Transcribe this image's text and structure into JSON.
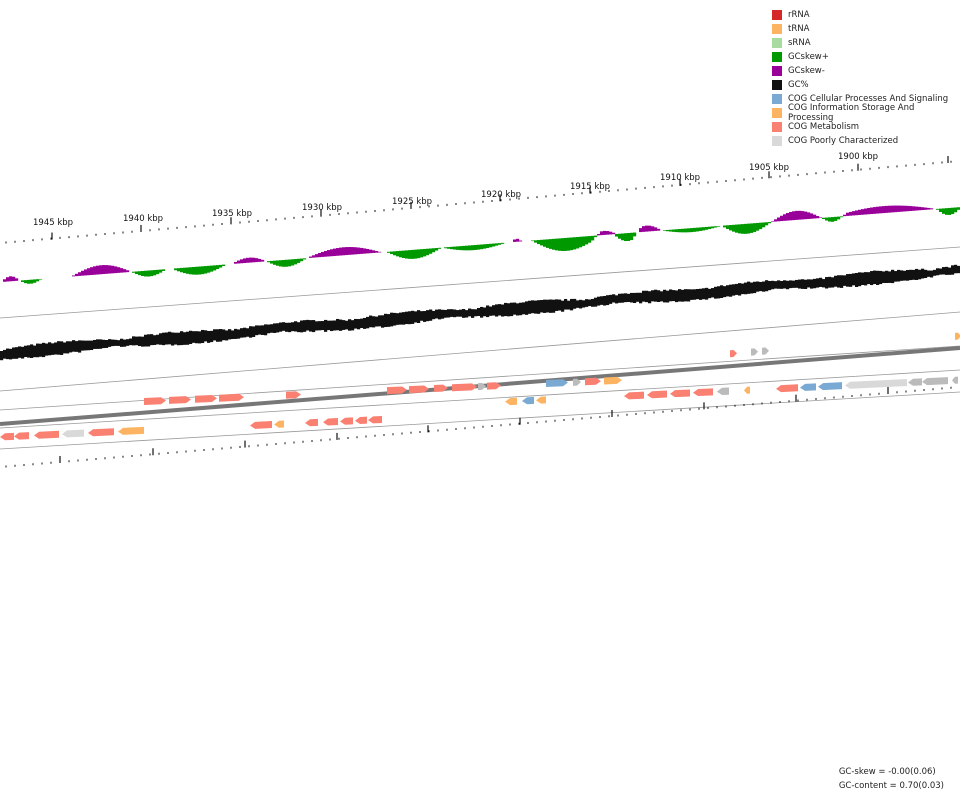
{
  "legend": [
    {
      "label": "rRNA",
      "color": "#d62728"
    },
    {
      "label": "tRNA",
      "color": "#fdb462"
    },
    {
      "label": "sRNA",
      "color": "#a8dba0"
    },
    {
      "label": "GCskew+",
      "color": "#009900"
    },
    {
      "label": "GCskew-",
      "color": "#990099"
    },
    {
      "label": "GC%",
      "color": "#111111"
    },
    {
      "label": "COG Cellular Processes And Signaling",
      "color": "#7aaad3"
    },
    {
      "label": "COG Information Storage And Processing",
      "color": "#fdb462"
    },
    {
      "label": "COG Metabolism",
      "color": "#fa8072"
    },
    {
      "label": "COG Poorly Characterized",
      "color": "#d9d9d9"
    }
  ],
  "scale_labels": [
    "1945 kbp",
    "1940 kbp",
    "1935 kbp",
    "1930 kbp",
    "1925 kbp",
    "1920 kbp",
    "1915 kbp",
    "1910 kbp",
    "1905 kbp",
    "1900 kbp"
  ],
  "stats": {
    "gc_skew": "GC-skew = -0.00(0.06)",
    "gc_content": "GC-content = 0.70(0.03)"
  },
  "colors": {
    "track_line": "#999999",
    "backbone": "#777777",
    "ticks": "#111111",
    "other_feature": "#bbbbbb"
  },
  "features": {
    "forward_outer": [
      [
        "metabolism",
        1
      ],
      [
        "other",
        1
      ],
      [
        "other",
        1
      ],
      [
        "poorly",
        6
      ],
      [
        "other",
        1
      ],
      [
        "other",
        2
      ],
      [
        "metabolism",
        2
      ],
      [
        "metabolism",
        2
      ],
      [
        "metabolism",
        3
      ],
      [
        "metabolism",
        3
      ],
      [
        "metabolism",
        3
      ],
      [
        "other",
        1
      ],
      [
        "cellular",
        2
      ],
      [
        "cellular",
        2
      ],
      [
        "other",
        1
      ],
      [
        "info",
        1
      ]
    ],
    "forward_inner": [
      [
        "metabolism",
        2
      ],
      [
        "metabolism",
        2
      ],
      [
        "metabolism",
        2
      ],
      [
        "metabolism",
        2
      ],
      [
        "metabolism",
        1
      ],
      [
        "metabolism",
        2
      ],
      [
        "metabolism",
        2
      ],
      [
        "metabolism",
        1
      ],
      [
        "metabolism",
        2
      ],
      [
        "other",
        1
      ],
      [
        "metabolism",
        1
      ],
      [
        "cellular",
        2
      ],
      [
        "other",
        1
      ],
      [
        "metabolism",
        2
      ],
      [
        "info",
        2
      ]
    ],
    "reverse_inner": [
      [
        "info",
        1
      ],
      [
        "cellular",
        1
      ],
      [
        "info",
        1
      ],
      [
        "metabolism",
        2
      ],
      [
        "metabolism",
        2
      ],
      [
        "metabolism",
        2
      ],
      [
        "metabolism",
        2
      ],
      [
        "other",
        1
      ],
      [
        "info",
        1
      ]
    ],
    "reverse_outer": [
      [
        "metabolism",
        1
      ],
      [
        "metabolism",
        1
      ],
      [
        "metabolism",
        2
      ],
      [
        "poorly",
        2
      ],
      [
        "metabolism",
        2
      ],
      [
        "info",
        2
      ],
      [
        "metabolism",
        2
      ],
      [
        "info",
        1
      ],
      [
        "metabolism",
        1
      ],
      [
        "metabolism",
        1
      ],
      [
        "metabolism",
        1
      ],
      [
        "metabolism",
        1
      ],
      [
        "metabolism",
        1
      ]
    ]
  }
}
